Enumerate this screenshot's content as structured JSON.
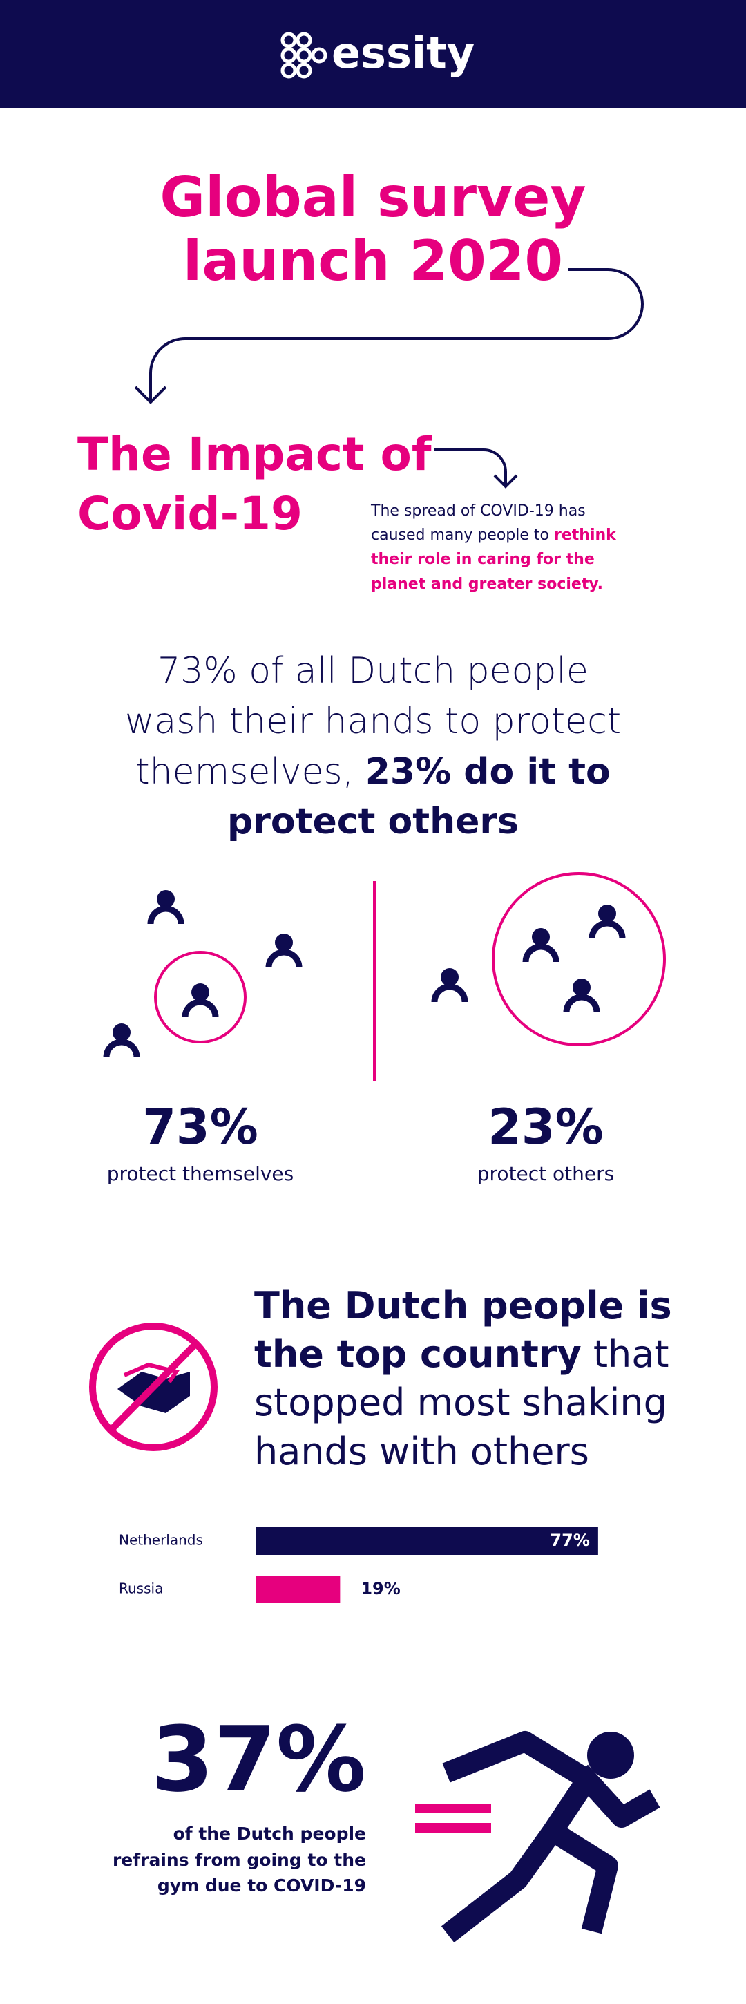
{
  "header": {
    "brand": "essity"
  },
  "title": "Global survey launch 2020",
  "impact": {
    "title": "The Impact of Covid-19",
    "text": [
      "The spread of COVID-19 has caused many people to",
      "rethink their role in caring for the planet and greater society."
    ]
  },
  "handwashing": {
    "statement": [
      "73% of all Dutch people wash their hands to protect themselves,",
      "23% do it to protect others"
    ],
    "stats": [
      {
        "value": "73%",
        "label": "protect themselves"
      },
      {
        "value": "23%",
        "label": "protect others"
      }
    ]
  },
  "handshake": {
    "heading": [
      "The Dutch people is the top country",
      "that stopped most shaking hands with others"
    ],
    "chart": {
      "type": "bar",
      "categories": [
        "Netherlands",
        "Russia"
      ],
      "values": [
        77,
        19
      ],
      "value_labels": [
        "77%",
        "19%"
      ],
      "colors": [
        "#0e0b4f",
        "#e6007e"
      ]
    }
  },
  "gym": {
    "value": "37%",
    "text": "of the Dutch people refrains from going to the gym due to COVID-19"
  }
}
